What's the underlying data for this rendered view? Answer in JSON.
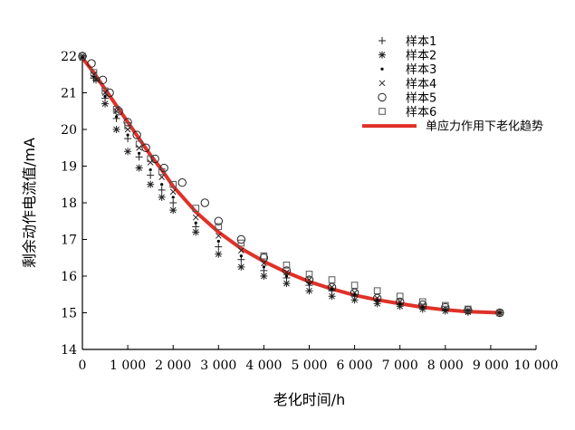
{
  "chart_data": {
    "type": "scatter",
    "xlabel": "老化时间/h",
    "ylabel": "剩余动作电流值/mA",
    "xlim": [
      0,
      10000
    ],
    "ylim": [
      14,
      22
    ],
    "xticks": [
      0,
      1000,
      2000,
      3000,
      4000,
      5000,
      6000,
      7000,
      8000,
      9000,
      10000
    ],
    "xtick_labels": [
      "0",
      "1 000",
      "2 000",
      "3 000",
      "4 000",
      "5 000",
      "6 000",
      "7 000",
      "8 000",
      "9 000",
      "10 000"
    ],
    "yticks": [
      14,
      15,
      16,
      17,
      18,
      19,
      20,
      21,
      22
    ],
    "ytick_labels": [
      "14",
      "15",
      "16",
      "17",
      "18",
      "19",
      "20",
      "21",
      "22"
    ],
    "grid": false,
    "legend_position": "top-right",
    "series": [
      {
        "name": "样本1",
        "marker": "plus",
        "x": [
          0,
          250,
          500,
          750,
          1000,
          1250,
          1500,
          1750,
          2000,
          2500,
          3000,
          3500,
          4000,
          4500,
          5000,
          5500,
          6000,
          6500,
          7000,
          7500,
          8000,
          8500,
          9200
        ],
        "y": [
          21.95,
          21.4,
          20.85,
          20.3,
          19.75,
          19.25,
          18.75,
          18.35,
          18.0,
          17.35,
          16.8,
          16.45,
          16.15,
          15.95,
          15.75,
          15.6,
          15.45,
          15.33,
          15.23,
          15.15,
          15.1,
          15.05,
          15.0
        ]
      },
      {
        "name": "样本2",
        "marker": "asterisk",
        "x": [
          0,
          300,
          500,
          750,
          1000,
          1250,
          1500,
          1750,
          2000,
          2500,
          3000,
          3500,
          4000,
          4500,
          5000,
          5500,
          6000,
          6500,
          7000,
          7500,
          8000,
          8500,
          9200
        ],
        "y": [
          21.95,
          21.35,
          20.7,
          20.0,
          19.4,
          18.95,
          18.5,
          18.15,
          17.8,
          17.2,
          16.6,
          16.25,
          16.0,
          15.8,
          15.6,
          15.45,
          15.35,
          15.25,
          15.18,
          15.1,
          15.05,
          15.02,
          15.0
        ]
      },
      {
        "name": "样本3",
        "marker": "dot",
        "x": [
          0,
          250,
          500,
          750,
          1000,
          1250,
          1500,
          1750,
          2000,
          2500,
          3000,
          3500,
          4000,
          4500,
          5000,
          5500,
          6000,
          6500,
          7000,
          7500,
          8000,
          8500,
          9200
        ],
        "y": [
          21.95,
          21.45,
          20.9,
          20.35,
          19.85,
          19.35,
          18.9,
          18.5,
          18.15,
          17.45,
          16.95,
          16.55,
          16.25,
          16.0,
          15.8,
          15.65,
          15.5,
          15.35,
          15.25,
          15.17,
          15.1,
          15.05,
          15.0
        ]
      },
      {
        "name": "样本4",
        "marker": "cross",
        "x": [
          0,
          250,
          500,
          750,
          1000,
          1250,
          1500,
          1750,
          2000,
          2500,
          3000,
          3500,
          4000,
          4500,
          5000,
          5500,
          6000,
          6500,
          7000,
          7500,
          8000,
          8500,
          9200
        ],
        "y": [
          22.0,
          21.5,
          21.0,
          20.5,
          20.0,
          19.5,
          19.1,
          18.7,
          18.3,
          17.6,
          17.1,
          16.7,
          16.35,
          16.1,
          15.9,
          15.7,
          15.55,
          15.4,
          15.3,
          15.2,
          15.12,
          15.06,
          15.0
        ]
      },
      {
        "name": "样本5",
        "marker": "circle",
        "x": [
          0,
          200,
          450,
          600,
          800,
          1000,
          1200,
          1400,
          1600,
          1800,
          2200,
          2700,
          3000,
          3500,
          4000,
          4500,
          5000,
          5500,
          6000,
          6500,
          7000,
          7500,
          8000,
          8500,
          9200
        ],
        "y": [
          22.0,
          21.8,
          21.35,
          21.0,
          20.5,
          20.2,
          19.85,
          19.5,
          19.2,
          18.95,
          18.55,
          18.0,
          17.5,
          17.0,
          16.5,
          16.15,
          15.9,
          15.7,
          15.55,
          15.4,
          15.3,
          15.22,
          15.15,
          15.07,
          15.0
        ]
      },
      {
        "name": "样本6",
        "marker": "square",
        "x": [
          0,
          250,
          500,
          750,
          1000,
          1250,
          1500,
          1750,
          2000,
          2500,
          3000,
          3500,
          4000,
          4500,
          5000,
          5500,
          6000,
          6500,
          7000,
          7500,
          8000,
          8500,
          9200
        ],
        "y": [
          22.0,
          21.55,
          21.05,
          20.55,
          20.1,
          19.6,
          19.2,
          18.85,
          18.5,
          17.85,
          17.35,
          16.9,
          16.55,
          16.3,
          16.05,
          15.9,
          15.75,
          15.6,
          15.45,
          15.3,
          15.2,
          15.1,
          15.0
        ]
      },
      {
        "name": "单应力作用下老化趋势",
        "marker": "line",
        "color": "#e03128",
        "x": [
          0,
          250,
          500,
          750,
          1000,
          1250,
          1500,
          1750,
          2000,
          2500,
          3000,
          3500,
          4000,
          4500,
          5000,
          5500,
          6000,
          6500,
          7000,
          7500,
          8000,
          8500,
          9200
        ],
        "y": [
          21.95,
          21.55,
          21.1,
          20.65,
          20.2,
          19.75,
          19.3,
          18.9,
          18.45,
          17.75,
          17.2,
          16.75,
          16.4,
          16.1,
          15.85,
          15.65,
          15.48,
          15.35,
          15.25,
          15.15,
          15.08,
          15.03,
          15.0
        ]
      }
    ]
  }
}
